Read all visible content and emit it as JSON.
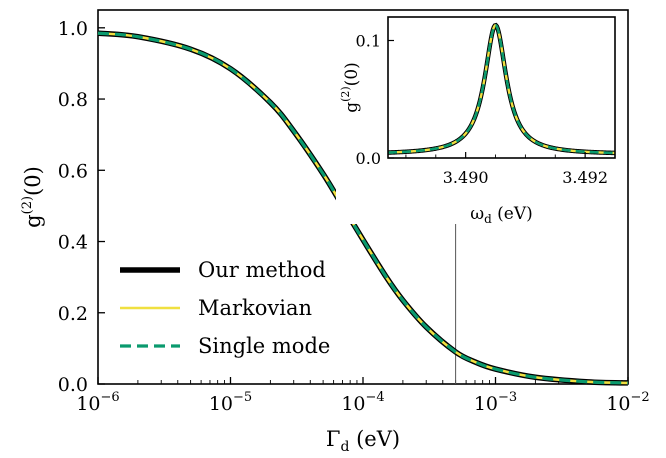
{
  "chart_data": [
    {
      "type": "line",
      "xlabel": "Γ_d (eV)",
      "ylabel": "g^(2)(0)",
      "xscale": "log",
      "xlim": [
        1e-06,
        0.01
      ],
      "ylim": [
        0.0,
        1.05
      ],
      "xticks": [
        1e-06,
        1e-05,
        0.0001,
        0.001,
        0.01
      ],
      "xtick_labels": [
        "10^-6",
        "10^-5",
        "10^-4",
        "10^-3",
        "10^-2"
      ],
      "yticks": [
        0.0,
        0.2,
        0.4,
        0.6,
        0.8,
        1.0
      ],
      "ytick_labels": [
        "0.0",
        "0.2",
        "0.4",
        "0.6",
        "0.8",
        "1.0"
      ],
      "grid": false,
      "legend_position": "lower-left",
      "vline_x": 0.0005,
      "x": [
        1e-06,
        2e-06,
        5e-06,
        1e-05,
        2e-05,
        3e-05,
        5e-05,
        7e-05,
        0.0001,
        0.00015,
        0.0002,
        0.0003,
        0.0005,
        0.0007,
        0.001,
        0.002,
        0.005,
        0.01
      ],
      "series": [
        {
          "name": "Our method",
          "color": "#000000",
          "style": "solid-thick",
          "values": [
            0.985,
            0.975,
            0.94,
            0.885,
            0.79,
            0.71,
            0.59,
            0.5,
            0.405,
            0.3,
            0.235,
            0.16,
            0.09,
            0.062,
            0.042,
            0.019,
            0.006,
            0.003
          ]
        },
        {
          "name": "Markovian",
          "color": "#f0e040",
          "style": "solid",
          "values": [
            0.985,
            0.975,
            0.94,
            0.885,
            0.79,
            0.71,
            0.59,
            0.5,
            0.405,
            0.3,
            0.235,
            0.16,
            0.09,
            0.062,
            0.042,
            0.019,
            0.006,
            0.003
          ]
        },
        {
          "name": "Single mode",
          "color": "#0a9a6e",
          "style": "dashed",
          "values": [
            0.985,
            0.975,
            0.94,
            0.885,
            0.79,
            0.71,
            0.59,
            0.5,
            0.405,
            0.3,
            0.235,
            0.16,
            0.09,
            0.062,
            0.042,
            0.019,
            0.006,
            0.003
          ]
        }
      ]
    },
    {
      "type": "line",
      "xlabel": "ω_d (eV)",
      "ylabel": "g^(2)(0)",
      "xlim": [
        3.4887,
        3.4925
      ],
      "ylim": [
        0.0,
        0.12
      ],
      "xticks": [
        3.49,
        3.492
      ],
      "xtick_labels": [
        "3.490",
        "3.492"
      ],
      "yticks": [
        0.0,
        0.1
      ],
      "ytick_labels": [
        "0.0",
        "0.1"
      ],
      "peak_center": 3.4905,
      "peak_height": 0.113,
      "peak_hwhm": 0.00022,
      "baseline": 0.003,
      "series": [
        {
          "name": "Our method",
          "color": "#000000"
        },
        {
          "name": "Markovian",
          "color": "#f0e040"
        },
        {
          "name": "Single mode",
          "color": "#0a9a6e"
        }
      ]
    }
  ]
}
